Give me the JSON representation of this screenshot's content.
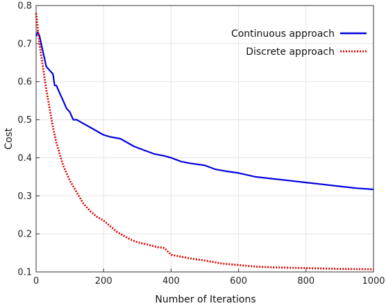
{
  "chart_data": {
    "type": "line",
    "title": "",
    "xlabel": "Number of Iterations",
    "ylabel": "Cost",
    "xlim": [
      0,
      1000
    ],
    "ylim": [
      0.1,
      0.8
    ],
    "xticks": [
      0,
      200,
      400,
      600,
      800,
      1000
    ],
    "yticks": [
      0.1,
      0.2,
      0.3,
      0.4,
      0.5,
      0.6,
      0.7,
      0.8
    ],
    "grid": true,
    "legend_position": "top-right",
    "series": [
      {
        "name": "Continuous approach",
        "color": "#0000dd",
        "style": "solid",
        "x": [
          0,
          5,
          10,
          15,
          20,
          25,
          30,
          40,
          50,
          55,
          60,
          70,
          80,
          90,
          100,
          110,
          120,
          140,
          160,
          180,
          200,
          220,
          250,
          270,
          290,
          320,
          350,
          380,
          400,
          430,
          460,
          500,
          530,
          560,
          600,
          650,
          700,
          750,
          800,
          850,
          900,
          950,
          1000
        ],
        "y": [
          0.72,
          0.73,
          0.72,
          0.7,
          0.68,
          0.66,
          0.64,
          0.63,
          0.62,
          0.59,
          0.59,
          0.57,
          0.55,
          0.53,
          0.52,
          0.5,
          0.5,
          0.49,
          0.48,
          0.47,
          0.46,
          0.455,
          0.45,
          0.44,
          0.43,
          0.42,
          0.41,
          0.405,
          0.4,
          0.39,
          0.385,
          0.38,
          0.37,
          0.365,
          0.36,
          0.35,
          0.345,
          0.34,
          0.335,
          0.33,
          0.325,
          0.32,
          0.317
        ]
      },
      {
        "name": "Discrete approach",
        "color": "#dd0000",
        "style": "dotted",
        "x": [
          0,
          5,
          10,
          15,
          20,
          25,
          30,
          40,
          50,
          60,
          70,
          80,
          90,
          100,
          120,
          140,
          160,
          180,
          200,
          220,
          240,
          260,
          280,
          300,
          330,
          360,
          380,
          400,
          430,
          460,
          500,
          550,
          600,
          650,
          700,
          800,
          900,
          1000
        ],
        "y": [
          0.78,
          0.74,
          0.7,
          0.67,
          0.64,
          0.61,
          0.58,
          0.53,
          0.48,
          0.44,
          0.41,
          0.38,
          0.36,
          0.34,
          0.31,
          0.28,
          0.26,
          0.245,
          0.235,
          0.22,
          0.205,
          0.195,
          0.185,
          0.178,
          0.172,
          0.165,
          0.163,
          0.145,
          0.14,
          0.135,
          0.13,
          0.122,
          0.118,
          0.114,
          0.112,
          0.11,
          0.108,
          0.107
        ]
      }
    ]
  }
}
